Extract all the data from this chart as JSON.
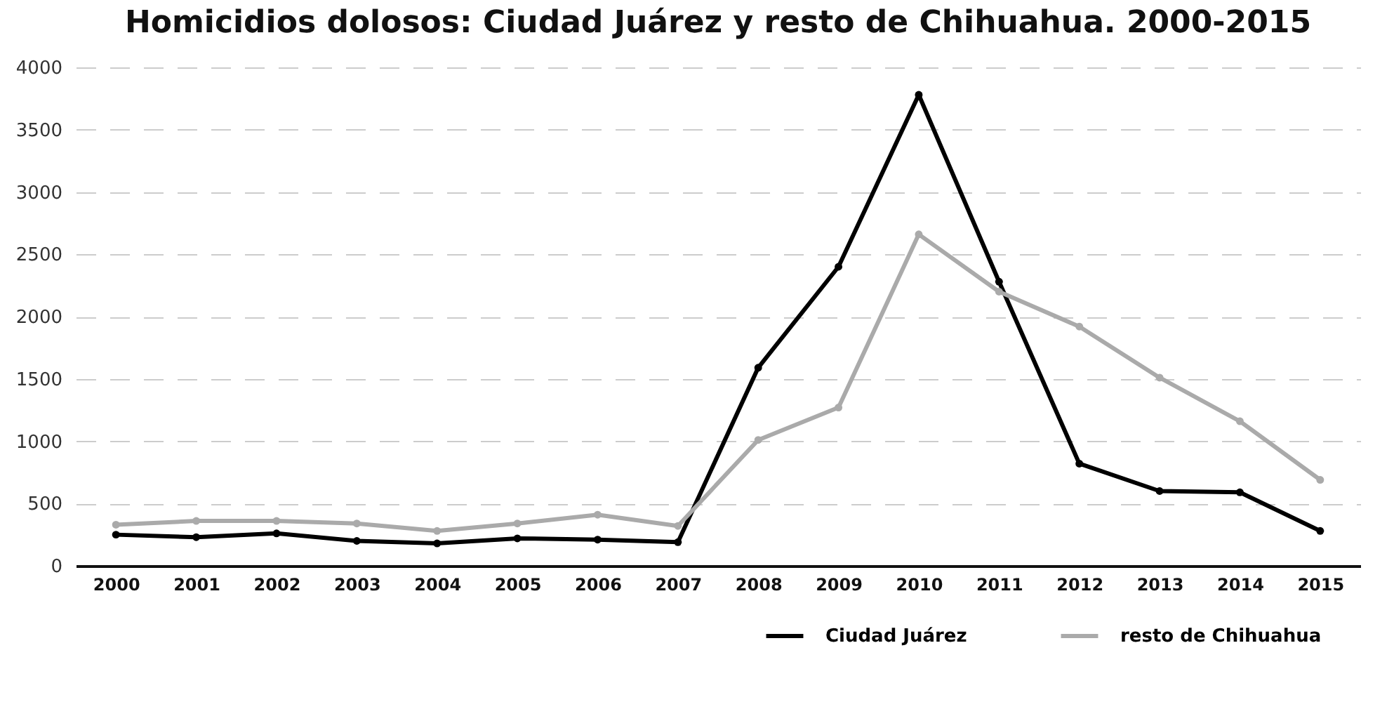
{
  "chart_data": {
    "type": "line",
    "title": "Homicidios dolosos: Ciudad Juárez y resto de Chihuahua. 2000-2015",
    "categories": [
      "2000",
      "2001",
      "2002",
      "2003",
      "2004",
      "2005",
      "2006",
      "2007",
      "2008",
      "2009",
      "2010",
      "2011",
      "2012",
      "2013",
      "2014",
      "2015"
    ],
    "series": [
      {
        "name": "Ciudad Juárez",
        "color": "#000000",
        "values": [
          250,
          230,
          260,
          200,
          180,
          220,
          210,
          190,
          1590,
          2400,
          3780,
          2280,
          820,
          600,
          590,
          280
        ]
      },
      {
        "name": "resto de Chihuahua",
        "color": "#aaaaaa",
        "values": [
          330,
          360,
          360,
          340,
          280,
          340,
          410,
          320,
          1010,
          1270,
          2660,
          2200,
          1920,
          1510,
          1160,
          690
        ]
      }
    ],
    "ylim": [
      0,
      4000
    ],
    "yticks": [
      0,
      500,
      1000,
      1500,
      2000,
      2500,
      3000,
      3500,
      4000
    ],
    "grid": "y",
    "legend": "bottom right",
    "marker": "circle",
    "line_style": "solid"
  }
}
